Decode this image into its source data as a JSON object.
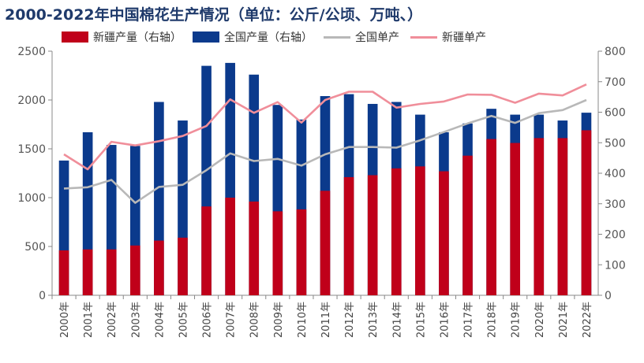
{
  "chart_data": {
    "type": "bar",
    "title": "2000-2022年中国棉花生产情况（单位：公斤/公顷、万吨、）",
    "categories": [
      "2000年",
      "2001年",
      "2002年",
      "2003年",
      "2004年",
      "2005年",
      "2006年",
      "2007年",
      "2008年",
      "2009年",
      "2010年",
      "2011年",
      "2012年",
      "2013年",
      "2014年",
      "2015年",
      "2016年",
      "2017年",
      "2018年",
      "2019年",
      "2020年",
      "2021年",
      "2022年"
    ],
    "left_axis": {
      "ylim": [
        0,
        2500
      ],
      "ticks": [
        0,
        500,
        1000,
        1500,
        2000,
        2500
      ]
    },
    "right_axis": {
      "ylim": [
        0,
        800
      ],
      "ticks": [
        0,
        100,
        200,
        300,
        400,
        500,
        600,
        700,
        800
      ]
    },
    "series": [
      {
        "name": "新疆产量（右轴）",
        "type": "bar",
        "axis": "left",
        "color": "#c0001a",
        "values": [
          460,
          470,
          470,
          510,
          560,
          590,
          910,
          1000,
          960,
          860,
          880,
          1070,
          1210,
          1230,
          1300,
          1320,
          1270,
          1430,
          1600,
          1560,
          1610,
          1610,
          1690
        ]
      },
      {
        "name": "全国产量（右轴）",
        "type": "bar",
        "axis": "left",
        "color": "#0b3a8c",
        "values": [
          1380,
          1670,
          1540,
          1530,
          1980,
          1790,
          2350,
          2380,
          2260,
          1950,
          1800,
          2040,
          2060,
          1960,
          1980,
          1850,
          1670,
          1760,
          1910,
          1850,
          1850,
          1790,
          1870
        ]
      },
      {
        "name": "全国单产",
        "type": "line",
        "axis": "right",
        "color": "#b8b8b8",
        "values": [
          350,
          354,
          378,
          303,
          355,
          362,
          410,
          465,
          440,
          447,
          425,
          462,
          486,
          486,
          484,
          508,
          535,
          563,
          588,
          565,
          597,
          607,
          640
        ]
      },
      {
        "name": "新疆单产",
        "type": "line",
        "axis": "right",
        "color": "#f08e9a",
        "values": [
          462,
          413,
          503,
          491,
          505,
          522,
          555,
          642,
          598,
          633,
          566,
          640,
          667,
          667,
          615,
          627,
          635,
          658,
          657,
          631,
          661,
          655,
          691
        ]
      }
    ]
  }
}
